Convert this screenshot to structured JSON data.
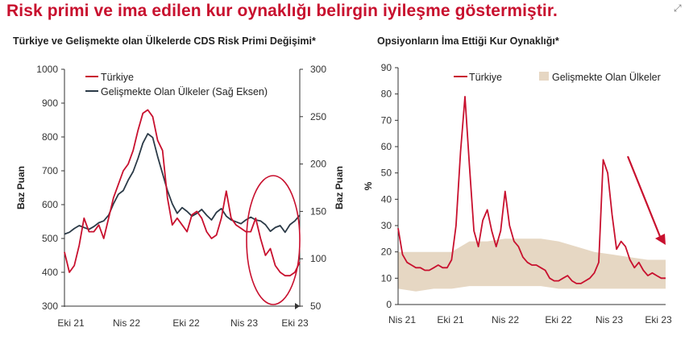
{
  "headline": "Risk primi ve ima edilen kur oynaklığı belirgin iyileşme göstermiştir.",
  "expand_icon": "expand-arrows-icon",
  "colors": {
    "headline": "#c8102e",
    "turkiye": "#c8102e",
    "em_cds": "#2b3a47",
    "em_band": "#e6d7c3",
    "annotation": "#c8102e"
  },
  "chart_data": [
    {
      "type": "line",
      "title": "Türkiye ve Gelişmekte olan Ülkelerde CDS Risk Primi Değişimi*",
      "ylabel": "Baz Puan",
      "y2label": "Baz Puan",
      "ylim": [
        300,
        1000
      ],
      "y2lim": [
        50,
        300
      ],
      "yticks": [
        300,
        400,
        500,
        600,
        700,
        800,
        900,
        1000
      ],
      "y2ticks": [
        50,
        100,
        150,
        200,
        250,
        300
      ],
      "xlim": [
        0,
        24
      ],
      "xtick_labels": [
        "Eki 21",
        "Nis 22",
        "Eki 22",
        "Nis 23",
        "Eki 23"
      ],
      "legend_position": "top-left",
      "grid": false,
      "annotation": "ellipse-highlight",
      "series": [
        {
          "name": "Türkiye",
          "axis": "left",
          "x": [
            0,
            0.5,
            1,
            1.5,
            2,
            2.5,
            3,
            3.5,
            4,
            4.5,
            5,
            5.5,
            6,
            6.5,
            7,
            7.5,
            8,
            8.5,
            9,
            9.5,
            10,
            10.5,
            11,
            11.5,
            12,
            12.5,
            13,
            13.5,
            14,
            14.5,
            15,
            15.5,
            16,
            16.5,
            17,
            17.5,
            18,
            18.5,
            19,
            19.5,
            20,
            20.5,
            21,
            21.5,
            22,
            22.5,
            23,
            23.5,
            24
          ],
          "values": [
            460,
            400,
            420,
            480,
            560,
            520,
            520,
            540,
            500,
            560,
            620,
            660,
            700,
            720,
            760,
            820,
            870,
            880,
            860,
            790,
            760,
            620,
            540,
            560,
            540,
            520,
            570,
            580,
            560,
            520,
            500,
            510,
            560,
            640,
            560,
            540,
            530,
            520,
            520,
            560,
            500,
            450,
            470,
            420,
            400,
            390,
            390,
            400,
            430
          ]
        },
        {
          "name": "Gelişmekte Olan Ülkeler (Sağ Eksen)",
          "axis": "right",
          "x": [
            0,
            0.5,
            1,
            1.5,
            2,
            2.5,
            3,
            3.5,
            4,
            4.5,
            5,
            5.5,
            6,
            6.5,
            7,
            7.5,
            8,
            8.5,
            9,
            9.5,
            10,
            10.5,
            11,
            11.5,
            12,
            12.5,
            13,
            13.5,
            14,
            14.5,
            15,
            15.5,
            16,
            16.5,
            17,
            17.5,
            18,
            18.5,
            19,
            19.5,
            20,
            20.5,
            21,
            21.5,
            22,
            22.5,
            23,
            23.5,
            24
          ],
          "values": [
            126,
            128,
            132,
            135,
            133,
            131,
            134,
            138,
            140,
            146,
            158,
            168,
            172,
            183,
            192,
            206,
            222,
            232,
            228,
            208,
            190,
            172,
            158,
            148,
            154,
            150,
            145,
            148,
            152,
            146,
            141,
            149,
            153,
            145,
            141,
            139,
            137,
            141,
            144,
            141,
            140,
            136,
            129,
            133,
            135,
            128,
            136,
            140,
            146
          ]
        }
      ]
    },
    {
      "type": "line",
      "title": "Opsiyonların İma Ettiği Kur Oynaklığı*",
      "ylabel": "%",
      "ylim": [
        0,
        90
      ],
      "yticks": [
        0,
        10,
        20,
        30,
        40,
        50,
        60,
        70,
        80,
        90
      ],
      "xlim": [
        0,
        30
      ],
      "xtick_labels": [
        "Nis 21",
        "Eki 21",
        "Nis 22",
        "Eki 22",
        "Nis 23",
        "Eki 23"
      ],
      "legend_position": "top",
      "grid": false,
      "annotation": "downward-trend-arrow",
      "series": [
        {
          "name": "Türkiye",
          "type": "line",
          "x": [
            0,
            0.5,
            1,
            1.5,
            2,
            2.5,
            3,
            3.5,
            4,
            4.5,
            5,
            5.5,
            6,
            6.5,
            7,
            7.5,
            8,
            8.5,
            9,
            9.5,
            10,
            10.5,
            11,
            11.5,
            12,
            12.5,
            13,
            13.5,
            14,
            14.5,
            15,
            15.5,
            16,
            16.5,
            17,
            17.5,
            18,
            18.5,
            19,
            19.5,
            20,
            20.5,
            21,
            21.5,
            22,
            22.5,
            23,
            23.5,
            24,
            24.5,
            25,
            25.5,
            26,
            26.5,
            27,
            27.5,
            28,
            28.5,
            29,
            29.5,
            30
          ],
          "values": [
            29,
            19,
            16,
            15,
            14,
            14,
            13,
            13,
            14,
            15,
            14,
            14,
            17,
            30,
            58,
            79,
            53,
            28,
            22,
            32,
            36,
            28,
            22,
            28,
            43,
            30,
            24,
            22,
            18,
            16,
            15,
            15,
            14,
            13,
            10,
            9,
            9,
            10,
            11,
            9,
            8,
            8,
            9,
            10,
            12,
            16,
            55,
            50,
            34,
            21,
            24,
            22,
            17,
            14,
            16,
            13,
            11,
            12,
            11,
            10,
            10
          ]
        },
        {
          "name": "Gelişmekte Olan Ülkeler",
          "type": "area",
          "x": [
            0,
            2,
            4,
            6,
            8,
            10,
            12,
            14,
            16,
            18,
            20,
            22,
            24,
            26,
            28,
            30
          ],
          "upper": [
            20,
            20,
            20,
            20,
            24,
            24,
            25,
            25,
            25,
            24,
            22,
            20,
            19,
            18,
            17,
            17
          ],
          "lower": [
            6,
            5,
            6,
            6,
            7,
            7,
            7,
            7,
            7,
            6,
            6,
            6,
            6,
            6,
            6,
            6
          ]
        }
      ]
    }
  ]
}
